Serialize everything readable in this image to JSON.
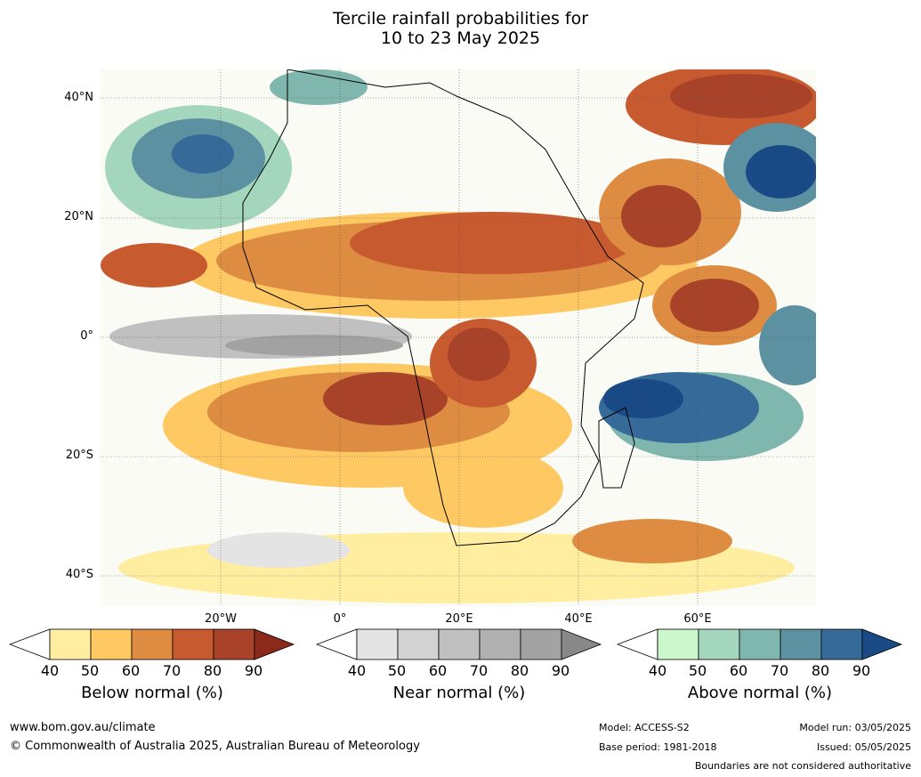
{
  "title": {
    "line1": "Tercile rainfall probabilities for",
    "line2": "10 to 23 May 2025"
  },
  "lat_labels": [
    "40°N",
    "20°N",
    "0°",
    "20°S",
    "40°S"
  ],
  "lon_labels": [
    "20°W",
    "0°",
    "20°E",
    "40°E",
    "60°E"
  ],
  "colorbars": [
    {
      "label": "Below normal (%)",
      "ticks": [
        "40",
        "50",
        "60",
        "70",
        "80",
        "90"
      ],
      "colors": [
        "#ffeda0",
        "#fec862",
        "#de8c42",
        "#c85a2f",
        "#a8432a",
        "#8b2a1a"
      ]
    },
    {
      "label": "Near normal (%)",
      "ticks": [
        "40",
        "50",
        "60",
        "70",
        "80",
        "90"
      ],
      "colors": [
        "#e4e4e4",
        "#d2d2d2",
        "#c0c0c0",
        "#b0b0b0",
        "#a2a2a2",
        "#888888"
      ]
    },
    {
      "label": "Above normal (%)",
      "ticks": [
        "40",
        "50",
        "60",
        "70",
        "80",
        "90"
      ],
      "colors": [
        "#ccf7cc",
        "#a4d6bd",
        "#7fb6ad",
        "#5b91a1",
        "#356a99",
        "#1a4a85"
      ]
    }
  ],
  "footer": {
    "url": "www.bom.gov.au/climate",
    "copyright": "© Commonwealth of Australia 2025, Australian Bureau of Meteorology",
    "model": "Model: ACCESS-S2",
    "base_period": "Base period: 1981-2018",
    "model_run": "Model run: 03/05/2025",
    "issued": "Issued: 05/05/2025",
    "disclaimer": "Boundaries are not considered authoritative"
  }
}
